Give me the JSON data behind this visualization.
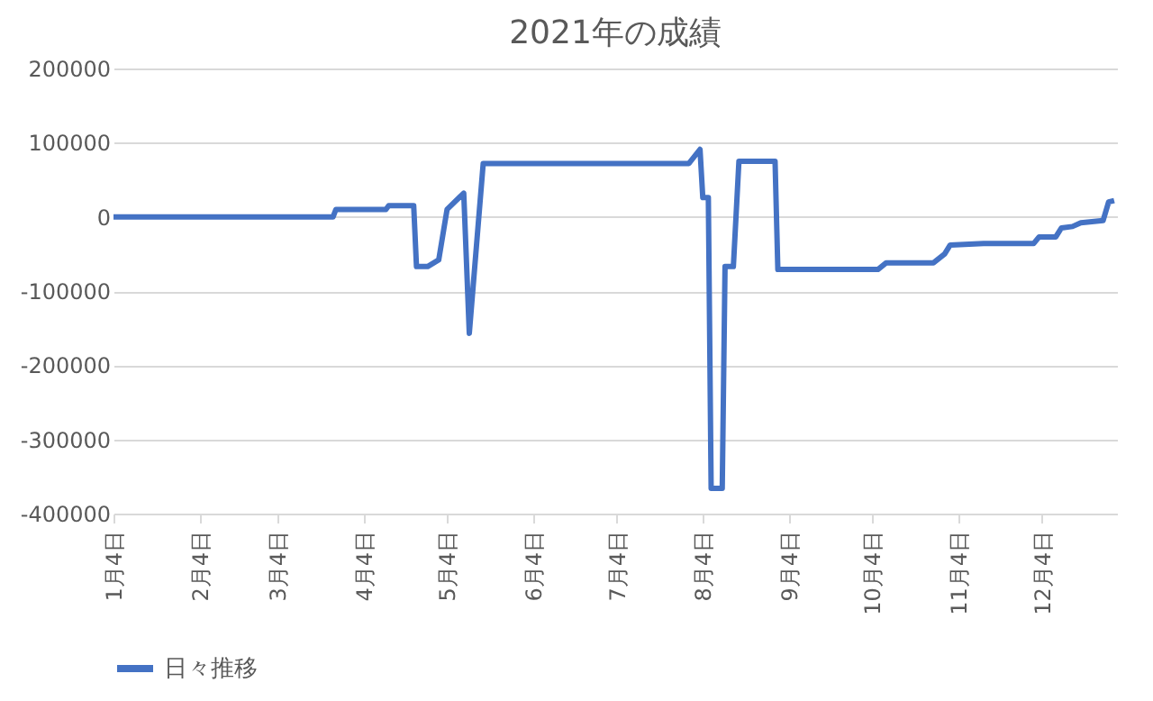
{
  "chart_data": {
    "type": "line",
    "title": "2021年の成績",
    "x": [
      "2021-01-04",
      "2021-03-24",
      "2021-03-25",
      "2021-04-12",
      "2021-04-13",
      "2021-04-22",
      "2021-04-23",
      "2021-04-27",
      "2021-05-01",
      "2021-05-04",
      "2021-05-10",
      "2021-05-12",
      "2021-05-17",
      "2021-07-30",
      "2021-08-03",
      "2021-08-04",
      "2021-08-06",
      "2021-08-07",
      "2021-08-11",
      "2021-08-12",
      "2021-08-15",
      "2021-08-17",
      "2021-08-30",
      "2021-08-31",
      "2021-10-06",
      "2021-10-09",
      "2021-10-26",
      "2021-10-30",
      "2021-11-01",
      "2021-11-13",
      "2021-12-01",
      "2021-12-03",
      "2021-12-09",
      "2021-12-11",
      "2021-12-15",
      "2021-12-18",
      "2021-12-26",
      "2021-12-28",
      "2021-12-30"
    ],
    "series": [
      {
        "name": "日々推移",
        "color": "#4472c4",
        "values": [
          0,
          0,
          10000,
          10000,
          15000,
          15000,
          -67000,
          -67000,
          -58000,
          10000,
          32000,
          -157000,
          72000,
          72000,
          91000,
          26000,
          26000,
          -366000,
          -366000,
          -67000,
          -67000,
          75000,
          75000,
          -71000,
          -71000,
          -62000,
          -62000,
          -50000,
          -38000,
          -36000,
          -36000,
          -27000,
          -27000,
          -15000,
          -13000,
          -8000,
          -5000,
          20000,
          22000
        ]
      }
    ],
    "xlim": [
      "2021-01-04",
      "2021-12-31"
    ],
    "xticks": [
      {
        "value": "2021-01-04",
        "label": "1月4日"
      },
      {
        "value": "2021-02-04",
        "label": "2月4日"
      },
      {
        "value": "2021-03-04",
        "label": "3月4日"
      },
      {
        "value": "2021-04-04",
        "label": "4月4日"
      },
      {
        "value": "2021-05-04",
        "label": "5月4日"
      },
      {
        "value": "2021-06-04",
        "label": "6月4日"
      },
      {
        "value": "2021-07-04",
        "label": "7月4日"
      },
      {
        "value": "2021-08-04",
        "label": "8月4日"
      },
      {
        "value": "2021-09-04",
        "label": "9月4日"
      },
      {
        "value": "2021-10-04",
        "label": "10月4日"
      },
      {
        "value": "2021-11-04",
        "label": "11月4日"
      },
      {
        "value": "2021-12-04",
        "label": "12月4日"
      }
    ],
    "ylim": [
      -400000,
      200000
    ],
    "yticks": [
      -400000,
      -300000,
      -200000,
      -100000,
      0,
      100000,
      200000
    ],
    "grid": "y",
    "legend": "bottom",
    "marker": "none",
    "line_style": "solid"
  }
}
